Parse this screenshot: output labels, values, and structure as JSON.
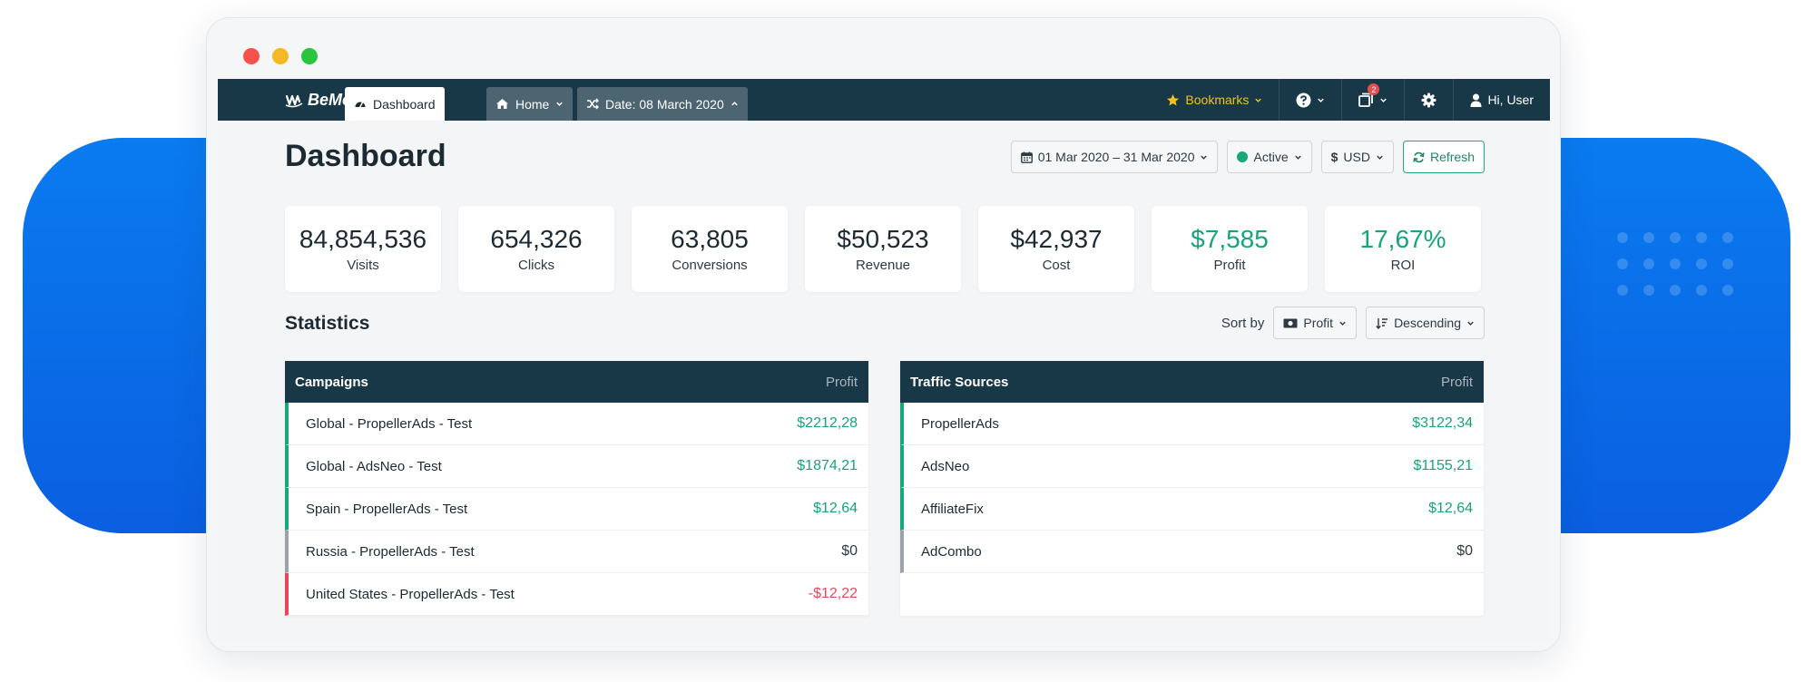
{
  "window": {
    "traffic_lights": [
      "close",
      "minimize",
      "maximize"
    ]
  },
  "topbar": {
    "brand": "BeMob",
    "tabs": [
      {
        "label": "Dashboard",
        "icon": "speedometer-icon",
        "active": true
      },
      {
        "label": "Home",
        "icon": "home-icon",
        "active": false
      },
      {
        "label": "Date: 08 March 2020",
        "icon": "shuffle-icon",
        "active": false
      }
    ],
    "bookmarks_label": "Bookmarks",
    "notifications_count": "2",
    "user_label": "Hi, User"
  },
  "page": {
    "title": "Dashboard",
    "date_range": "01 Mar 2020 – 31 Mar 2020",
    "status": "Active",
    "currency": "USD",
    "refresh_label": "Refresh"
  },
  "stats": [
    {
      "value": "84,854,536",
      "label": "Visits",
      "highlight": false
    },
    {
      "value": "654,326",
      "label": "Clicks",
      "highlight": false
    },
    {
      "value": "63,805",
      "label": "Conversions",
      "highlight": false
    },
    {
      "value": "$50,523",
      "label": "Revenue",
      "highlight": false
    },
    {
      "value": "$42,937",
      "label": "Cost",
      "highlight": false
    },
    {
      "value": "$7,585",
      "label": "Profit",
      "highlight": true
    },
    {
      "value": "17,67%",
      "label": "ROI",
      "highlight": true
    }
  ],
  "statistics": {
    "title": "Statistics",
    "sort_by_label": "Sort by",
    "sort_field": "Profit",
    "sort_order": "Descending"
  },
  "campaigns": {
    "title": "Campaigns",
    "column": "Profit",
    "rows": [
      {
        "name": "Global - PropellerAds - Test",
        "profit": "$2212,28",
        "status": "positive"
      },
      {
        "name": "Global - AdsNeo - Test",
        "profit": "$1874,21",
        "status": "positive"
      },
      {
        "name": "Spain - PropellerAds - Test",
        "profit": "$12,64",
        "status": "positive"
      },
      {
        "name": "Russia - PropellerAds - Test",
        "profit": "$0",
        "status": "neutral"
      },
      {
        "name": "United States - PropellerAds - Test",
        "profit": "-$12,22",
        "status": "negative"
      }
    ]
  },
  "traffic_sources": {
    "title": "Traffic Sources",
    "column": "Profit",
    "rows": [
      {
        "name": "PropellerAds",
        "profit": "$3122,34",
        "status": "positive"
      },
      {
        "name": "AdsNeo",
        "profit": "$1155,21",
        "status": "positive"
      },
      {
        "name": "AffiliateFix",
        "profit": "$12,64",
        "status": "positive"
      },
      {
        "name": "AdCombo",
        "profit": "$0",
        "status": "neutral"
      }
    ]
  },
  "colors": {
    "navbar": "#183848",
    "positive": "#16a47a",
    "negative": "#e8475a",
    "bookmarks": "#f5c21b",
    "backdrop": "#0a6ef0"
  }
}
